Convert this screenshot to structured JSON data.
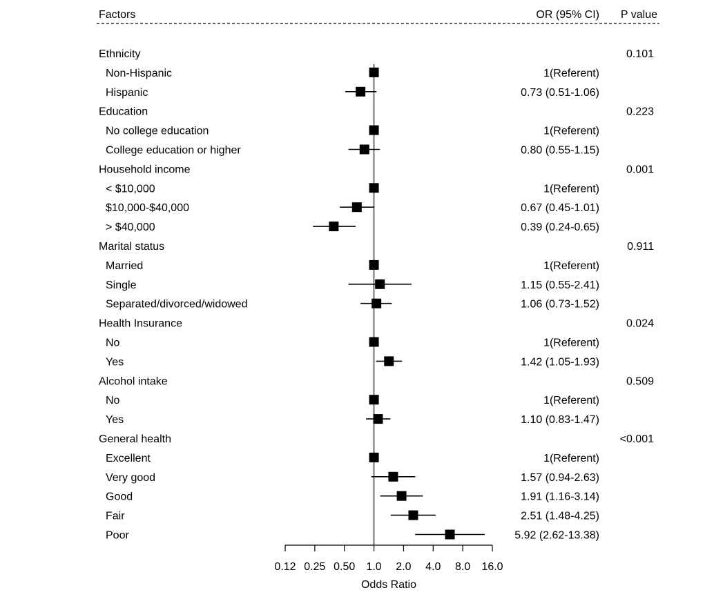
{
  "chart_data": {
    "type": "forest",
    "x_scale": "log2",
    "xlabel": "Odds Ratio",
    "xlim": [
      0.125,
      16
    ],
    "x_ticks": [
      {
        "value": 0.125,
        "label": "0.12"
      },
      {
        "value": 0.25,
        "label": "0.25"
      },
      {
        "value": 0.5,
        "label": "0.50"
      },
      {
        "value": 1,
        "label": "1.0"
      },
      {
        "value": 2,
        "label": "2.0"
      },
      {
        "value": 4,
        "label": "4.0"
      },
      {
        "value": 8,
        "label": "8.0"
      },
      {
        "value": 16,
        "label": "16.0"
      }
    ],
    "reference_line": 1,
    "columns": {
      "factor": "Factors",
      "or_ci": "OR (95% CI)",
      "p": "P value"
    },
    "groups": [
      {
        "label": "Ethnicity",
        "p": "0.101",
        "rows": [
          {
            "label": "Non-Hispanic",
            "text": "1(Referent)",
            "or": 1
          },
          {
            "label": "Hispanic",
            "text": "0.73 (0.51-1.06)",
            "or": 0.73,
            "lo": 0.51,
            "hi": 1.06
          }
        ]
      },
      {
        "label": "Education",
        "p": "0.223",
        "rows": [
          {
            "label": "No college education",
            "text": "1(Referent)",
            "or": 1
          },
          {
            "label": "College education or higher",
            "text": "0.80 (0.55-1.15)",
            "or": 0.8,
            "lo": 0.55,
            "hi": 1.15
          }
        ]
      },
      {
        "label": "Household income",
        "p": "0.001",
        "rows": [
          {
            "label": "< $10,000",
            "text": "1(Referent)",
            "or": 1
          },
          {
            "label": "$10,000-$40,000",
            "text": "0.67 (0.45-1.01)",
            "or": 0.67,
            "lo": 0.45,
            "hi": 1.01
          },
          {
            "label": "> $40,000",
            "text": "0.39 (0.24-0.65)",
            "or": 0.39,
            "lo": 0.24,
            "hi": 0.65
          }
        ]
      },
      {
        "label": "Marital status",
        "p": "0.911",
        "rows": [
          {
            "label": "Married",
            "text": "1(Referent)",
            "or": 1
          },
          {
            "label": "Single",
            "text": "1.15 (0.55-2.41)",
            "or": 1.15,
            "lo": 0.55,
            "hi": 2.41
          },
          {
            "label": "Separated/divorced/widowed",
            "text": "1.06 (0.73-1.52)",
            "or": 1.06,
            "lo": 0.73,
            "hi": 1.52
          }
        ]
      },
      {
        "label": "Health Insurance",
        "p": "0.024",
        "rows": [
          {
            "label": "No",
            "text": "1(Referent)",
            "or": 1
          },
          {
            "label": "Yes",
            "text": "1.42 (1.05-1.93)",
            "or": 1.42,
            "lo": 1.05,
            "hi": 1.93
          }
        ]
      },
      {
        "label": "Alcohol intake",
        "p": "0.509",
        "rows": [
          {
            "label": "No",
            "text": "1(Referent)",
            "or": 1
          },
          {
            "label": "Yes",
            "text": "1.10 (0.83-1.47)",
            "or": 1.1,
            "lo": 0.83,
            "hi": 1.47
          }
        ]
      },
      {
        "label": "General health",
        "p": "<0.001",
        "rows": [
          {
            "label": "Excellent",
            "text": "1(Referent)",
            "or": 1
          },
          {
            "label": "Very good",
            "text": "1.57 (0.94-2.63)",
            "or": 1.57,
            "lo": 0.94,
            "hi": 2.63
          },
          {
            "label": "Good",
            "text": "1.91 (1.16-3.14)",
            "or": 1.91,
            "lo": 1.16,
            "hi": 3.14
          },
          {
            "label": "Fair",
            "text": "2.51 (1.48-4.25)",
            "or": 2.51,
            "lo": 1.48,
            "hi": 4.25
          },
          {
            "label": "Poor",
            "text": "5.92 (2.62-13.38)",
            "or": 5.92,
            "lo": 2.62,
            "hi": 13.38
          }
        ]
      }
    ]
  }
}
